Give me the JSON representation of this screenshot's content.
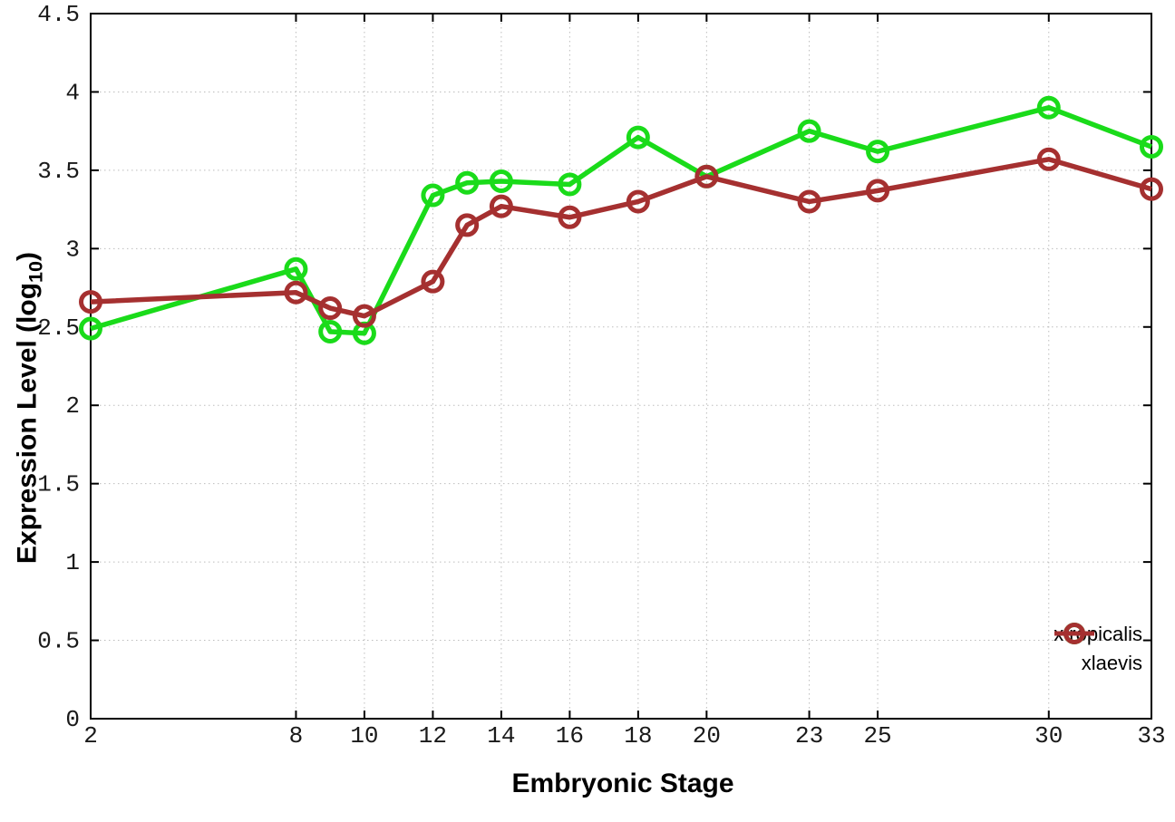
{
  "figure": {
    "background": "#ffffff",
    "border_color": "#000000",
    "grid_color": "#bdbdbd",
    "tick_label_color": "#1a1a1a"
  },
  "chart_data": {
    "type": "line",
    "title": "",
    "xlabel": "Embryonic Stage",
    "ylabel": "Expression Level (log10)",
    "ylabel_prefix": "Expression Level (log",
    "ylabel_subscript": "10",
    "ylabel_suffix": ")",
    "xlim": [
      2,
      33
    ],
    "ylim": [
      0,
      4.5
    ],
    "x_ticks": [
      2,
      8,
      10,
      12,
      14,
      16,
      18,
      20,
      23,
      25,
      30,
      33
    ],
    "x_tick_labels": [
      "2",
      "8",
      "10",
      "12",
      "14",
      "16",
      "18",
      "20",
      "23",
      "25",
      "30",
      "33"
    ],
    "y_ticks": [
      0,
      0.5,
      1,
      1.5,
      2,
      2.5,
      3,
      3.5,
      4,
      4.5
    ],
    "y_tick_labels": [
      "0",
      "0.5",
      "1",
      "1.5",
      "2",
      "2.5",
      "3",
      "3.5",
      "4",
      "4.5"
    ],
    "grid": true,
    "marker": "open-circle",
    "legend_position": "bottom-right",
    "x": [
      2,
      8,
      9,
      10,
      12,
      13,
      14,
      16,
      18,
      20,
      23,
      25,
      30,
      33
    ],
    "series": [
      {
        "name": "xtropicalis",
        "color": "#1adb1a",
        "values": [
          2.49,
          2.87,
          2.47,
          2.46,
          3.34,
          3.42,
          3.43,
          3.41,
          3.71,
          3.46,
          3.75,
          3.62,
          3.9,
          3.65
        ]
      },
      {
        "name": "xlaevis",
        "color": "#a53030",
        "values": [
          2.66,
          2.72,
          2.62,
          2.57,
          2.79,
          3.15,
          3.27,
          3.2,
          3.3,
          3.46,
          3.3,
          3.37,
          3.57,
          3.38
        ]
      }
    ]
  }
}
